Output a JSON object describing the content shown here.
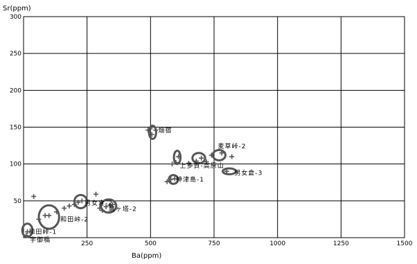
{
  "chart_data": {
    "type": "scatter",
    "title": "",
    "xlabel": "Ba(ppm)",
    "ylabel": "Sr(ppm)",
    "xlim": [
      0,
      1500
    ],
    "ylim": [
      0,
      300
    ],
    "x_ticks": [
      "250",
      "500",
      "750",
      "1000",
      "1250",
      "1500"
    ],
    "y_ticks": [
      "50",
      "100",
      "150",
      "200",
      "250",
      "300"
    ],
    "grid": true,
    "colors": {
      "marker": "#555555",
      "grid": "#000000",
      "text": "#000000"
    },
    "points": [
      {
        "x": 10,
        "y": 3
      },
      {
        "x": 15,
        "y": 8
      },
      {
        "x": 60,
        "y": 25
      },
      {
        "x": 85,
        "y": 30
      },
      {
        "x": 100,
        "y": 30
      },
      {
        "x": 130,
        "y": 35
      },
      {
        "x": 160,
        "y": 40
      },
      {
        "x": 180,
        "y": 43
      },
      {
        "x": 200,
        "y": 45
      },
      {
        "x": 40,
        "y": 56
      },
      {
        "x": 285,
        "y": 59
      },
      {
        "x": 300,
        "y": 40
      },
      {
        "x": 310,
        "y": 37
      },
      {
        "x": 350,
        "y": 45
      },
      {
        "x": 490,
        "y": 146
      },
      {
        "x": 505,
        "y": 150
      },
      {
        "x": 520,
        "y": 146
      },
      {
        "x": 505,
        "y": 140
      },
      {
        "x": 565,
        "y": 76
      },
      {
        "x": 580,
        "y": 79
      },
      {
        "x": 595,
        "y": 80
      },
      {
        "x": 585,
        "y": 100
      },
      {
        "x": 600,
        "y": 102
      },
      {
        "x": 610,
        "y": 110
      },
      {
        "x": 650,
        "y": 101
      },
      {
        "x": 680,
        "y": 104
      },
      {
        "x": 700,
        "y": 108
      },
      {
        "x": 720,
        "y": 103
      },
      {
        "x": 740,
        "y": 112
      },
      {
        "x": 780,
        "y": 115
      },
      {
        "x": 800,
        "y": 90
      },
      {
        "x": 820,
        "y": 110
      },
      {
        "x": 215,
        "y": 48
      },
      {
        "x": 230,
        "y": 50
      },
      {
        "x": 325,
        "y": 42
      },
      {
        "x": 340,
        "y": 44
      }
    ],
    "clusters": [
      {
        "x": 15,
        "y": 10,
        "rx": 20,
        "ry": 9
      },
      {
        "x": 100,
        "y": 28,
        "rx": 40,
        "ry": 16
      },
      {
        "x": 225,
        "y": 49,
        "rx": 25,
        "ry": 9
      },
      {
        "x": 335,
        "y": 43,
        "rx": 30,
        "ry": 9
      },
      {
        "x": 508,
        "y": 143,
        "rx": 14,
        "ry": 9
      },
      {
        "x": 590,
        "y": 79,
        "rx": 18,
        "ry": 6
      },
      {
        "x": 605,
        "y": 109,
        "rx": 13,
        "ry": 9
      },
      {
        "x": 690,
        "y": 108,
        "rx": 25,
        "ry": 7
      },
      {
        "x": 770,
        "y": 112,
        "rx": 25,
        "ry": 7
      },
      {
        "x": 810,
        "y": 90,
        "rx": 26,
        "ry": 4
      }
    ],
    "annotations": [
      {
        "text": "畑宿",
        "x": 530,
        "y": 146
      },
      {
        "text": "麦草峠-2",
        "x": 765,
        "y": 124
      },
      {
        "text": "上多賀-高原山",
        "x": 615,
        "y": 98
      },
      {
        "text": "男女倉-3",
        "x": 830,
        "y": 88
      },
      {
        "text": "神津島-1",
        "x": 600,
        "y": 79
      },
      {
        "text": "男女倉-2",
        "x": 240,
        "y": 47
      },
      {
        "text": "鷹ヶ塔-2",
        "x": 335,
        "y": 39
      },
      {
        "text": "和田峠-2",
        "x": 145,
        "y": 25
      },
      {
        "text": "和田峠-1",
        "x": 20,
        "y": 8
      },
      {
        "text": "宇御橋",
        "x": 25,
        "y": -3
      }
    ]
  }
}
